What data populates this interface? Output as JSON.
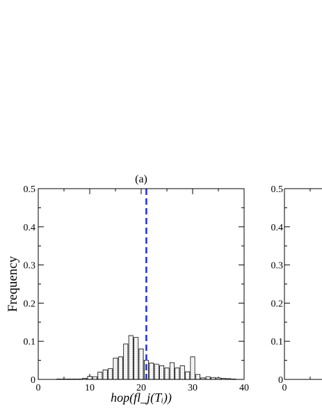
{
  "chart_data": [
    {
      "panel_label": "(a)",
      "type": "bar",
      "bin_width": 1,
      "x": [
        4,
        5,
        6,
        7,
        8,
        9,
        10,
        11,
        12,
        13,
        14,
        15,
        16,
        17,
        18,
        19,
        20,
        21,
        22,
        23,
        24,
        25,
        26,
        27,
        28,
        29,
        30,
        31,
        32,
        33,
        34,
        35,
        36,
        37,
        38
      ],
      "values": [
        0.001,
        0.001,
        0.001,
        0.001,
        0.001,
        0.003,
        0.008,
        0.007,
        0.019,
        0.025,
        0.028,
        0.056,
        0.059,
        0.093,
        0.115,
        0.11,
        0.08,
        0.05,
        0.043,
        0.04,
        0.036,
        0.03,
        0.044,
        0.03,
        0.036,
        0.02,
        0.059,
        0.013,
        0.004,
        0.007,
        0.005,
        0.004,
        0.003,
        0.002,
        0.001
      ],
      "vline_x": 21,
      "xlabel": "hop(fl_j(Tᵢ))",
      "ylabel": "Frequency",
      "xlim": [
        0,
        40
      ],
      "ylim": [
        0,
        0.5
      ],
      "xticks": [
        "0",
        "10",
        "20",
        "30",
        "40"
      ],
      "yticks": [
        "0",
        "0.1",
        "0.2",
        "0.3",
        "0.4",
        "0.5"
      ],
      "colors": {
        "bars": "#000000",
        "vline": "#1c2ee6"
      }
    },
    {
      "panel_label": "",
      "type": "bar",
      "ylim": [
        0,
        0.5
      ],
      "xlim": [
        0,
        40
      ],
      "xticks": [
        "0"
      ],
      "yticks": [
        "0",
        "0.1",
        "0.2",
        "0.3",
        "0.4",
        "0.5"
      ]
    }
  ]
}
